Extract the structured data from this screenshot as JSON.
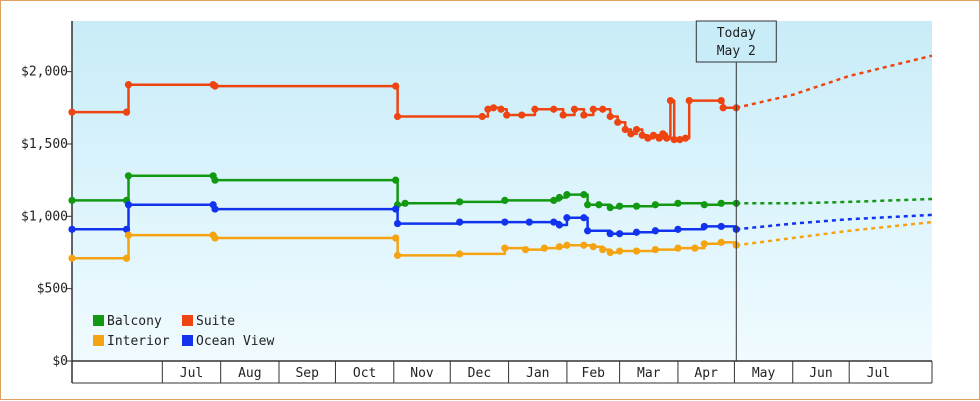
{
  "chart_data": {
    "type": "line",
    "y_axis": {
      "ticks": [
        "$0",
        "$500",
        "$1,000",
        "$1,500",
        "$2,000"
      ],
      "tick_values": [
        0,
        500,
        1000,
        1500,
        2000
      ],
      "ylim": [
        0,
        2350
      ]
    },
    "x_axis": {
      "month_labels": [
        "Jul",
        "Aug",
        "Sep",
        "Oct",
        "Nov",
        "Dec",
        "Jan",
        "Feb",
        "Mar",
        "Apr",
        "May",
        "Jun",
        "Jul"
      ],
      "month_starts": [
        "2024-06-01",
        "2024-07-01",
        "2024-08-01",
        "2024-09-01",
        "2024-10-01",
        "2024-11-01",
        "2024-12-01",
        "2025-01-01",
        "2025-02-01",
        "2025-03-01",
        "2025-04-01",
        "2025-05-01",
        "2025-06-01",
        "2025-07-01",
        "2025-08-01"
      ],
      "xlim": [
        "2024-05-14",
        "2025-08-14"
      ]
    },
    "today": {
      "date": "2025-05-02",
      "line1": "Today",
      "line2": "May 2"
    },
    "legend": {
      "placement": "bottom-left"
    },
    "series": [
      {
        "name": "Suite",
        "color": "#ee4411",
        "points": [
          [
            "2024-05-14",
            1720
          ],
          [
            "2024-06-12",
            1720
          ],
          [
            "2024-06-13",
            1910
          ],
          [
            "2024-07-28",
            1910
          ],
          [
            "2024-07-29",
            1900
          ],
          [
            "2024-11-02",
            1900
          ],
          [
            "2024-11-03",
            1690
          ],
          [
            "2024-12-18",
            1690
          ],
          [
            "2024-12-21",
            1740
          ],
          [
            "2024-12-24",
            1750
          ],
          [
            "2024-12-28",
            1740
          ],
          [
            "2024-12-31",
            1700
          ],
          [
            "2025-01-08",
            1700
          ],
          [
            "2025-01-15",
            1740
          ],
          [
            "2025-01-25",
            1740
          ],
          [
            "2025-01-30",
            1700
          ],
          [
            "2025-02-05",
            1740
          ],
          [
            "2025-02-10",
            1700
          ],
          [
            "2025-02-15",
            1740
          ],
          [
            "2025-02-20",
            1740
          ],
          [
            "2025-02-24",
            1690
          ],
          [
            "2025-02-28",
            1650
          ],
          [
            "2025-03-04",
            1600
          ],
          [
            "2025-03-07",
            1570
          ],
          [
            "2025-03-10",
            1600
          ],
          [
            "2025-03-13",
            1560
          ],
          [
            "2025-03-16",
            1540
          ],
          [
            "2025-03-19",
            1560
          ],
          [
            "2025-03-22",
            1540
          ],
          [
            "2025-03-24",
            1570
          ],
          [
            "2025-03-26",
            1540
          ],
          [
            "2025-03-28",
            1800
          ],
          [
            "2025-03-30",
            1530
          ],
          [
            "2025-04-02",
            1530
          ],
          [
            "2025-04-05",
            1540
          ],
          [
            "2025-04-07",
            1800
          ],
          [
            "2025-04-24",
            1800
          ],
          [
            "2025-04-25",
            1750
          ],
          [
            "2025-05-02",
            1750
          ]
        ],
        "forecast": [
          [
            "2025-05-02",
            1750
          ],
          [
            "2025-06-01",
            1840
          ],
          [
            "2025-07-01",
            1970
          ],
          [
            "2025-08-14",
            2110
          ]
        ]
      },
      {
        "name": "Balcony",
        "color": "#119911",
        "points": [
          [
            "2024-05-14",
            1110
          ],
          [
            "2024-06-12",
            1110
          ],
          [
            "2024-06-13",
            1280
          ],
          [
            "2024-07-28",
            1280
          ],
          [
            "2024-07-29",
            1250
          ],
          [
            "2024-11-02",
            1250
          ],
          [
            "2024-11-03",
            1080
          ],
          [
            "2024-11-07",
            1090
          ],
          [
            "2024-12-06",
            1100
          ],
          [
            "2024-12-30",
            1110
          ],
          [
            "2025-01-25",
            1110
          ],
          [
            "2025-01-28",
            1130
          ],
          [
            "2025-02-01",
            1150
          ],
          [
            "2025-02-10",
            1150
          ],
          [
            "2025-02-12",
            1080
          ],
          [
            "2025-02-18",
            1080
          ],
          [
            "2025-02-24",
            1060
          ],
          [
            "2025-03-01",
            1070
          ],
          [
            "2025-03-10",
            1070
          ],
          [
            "2025-03-20",
            1080
          ],
          [
            "2025-04-01",
            1090
          ],
          [
            "2025-04-15",
            1080
          ],
          [
            "2025-04-24",
            1090
          ],
          [
            "2025-05-02",
            1090
          ]
        ],
        "forecast": [
          [
            "2025-05-02",
            1090
          ],
          [
            "2025-06-01",
            1090
          ],
          [
            "2025-07-01",
            1100
          ],
          [
            "2025-08-14",
            1120
          ]
        ]
      },
      {
        "name": "Ocean View",
        "color": "#1133ee",
        "points": [
          [
            "2024-05-14",
            910
          ],
          [
            "2024-06-12",
            910
          ],
          [
            "2024-06-13",
            1080
          ],
          [
            "2024-07-28",
            1080
          ],
          [
            "2024-07-29",
            1050
          ],
          [
            "2024-11-02",
            1050
          ],
          [
            "2024-11-03",
            950
          ],
          [
            "2024-12-06",
            960
          ],
          [
            "2024-12-30",
            960
          ],
          [
            "2025-01-12",
            960
          ],
          [
            "2025-01-25",
            960
          ],
          [
            "2025-01-28",
            940
          ],
          [
            "2025-02-01",
            990
          ],
          [
            "2025-02-10",
            990
          ],
          [
            "2025-02-12",
            900
          ],
          [
            "2025-02-24",
            880
          ],
          [
            "2025-03-01",
            880
          ],
          [
            "2025-03-10",
            890
          ],
          [
            "2025-03-20",
            900
          ],
          [
            "2025-04-01",
            910
          ],
          [
            "2025-04-15",
            930
          ],
          [
            "2025-04-24",
            930
          ],
          [
            "2025-05-02",
            910
          ]
        ],
        "forecast": [
          [
            "2025-05-02",
            910
          ],
          [
            "2025-06-01",
            950
          ],
          [
            "2025-07-01",
            980
          ],
          [
            "2025-08-14",
            1010
          ]
        ]
      },
      {
        "name": "Interior",
        "color": "#f5a311",
        "points": [
          [
            "2024-05-14",
            710
          ],
          [
            "2024-06-12",
            710
          ],
          [
            "2024-06-13",
            870
          ],
          [
            "2024-07-28",
            870
          ],
          [
            "2024-07-29",
            850
          ],
          [
            "2024-11-02",
            850
          ],
          [
            "2024-11-03",
            730
          ],
          [
            "2024-12-06",
            740
          ],
          [
            "2024-12-30",
            780
          ],
          [
            "2025-01-10",
            770
          ],
          [
            "2025-01-20",
            780
          ],
          [
            "2025-01-28",
            790
          ],
          [
            "2025-02-01",
            800
          ],
          [
            "2025-02-10",
            800
          ],
          [
            "2025-02-15",
            790
          ],
          [
            "2025-02-20",
            770
          ],
          [
            "2025-02-24",
            750
          ],
          [
            "2025-03-01",
            760
          ],
          [
            "2025-03-10",
            760
          ],
          [
            "2025-03-20",
            770
          ],
          [
            "2025-04-01",
            780
          ],
          [
            "2025-04-10",
            780
          ],
          [
            "2025-04-15",
            810
          ],
          [
            "2025-04-24",
            820
          ],
          [
            "2025-05-02",
            800
          ]
        ],
        "forecast": [
          [
            "2025-05-02",
            800
          ],
          [
            "2025-06-01",
            850
          ],
          [
            "2025-07-01",
            900
          ],
          [
            "2025-08-14",
            960
          ]
        ]
      }
    ],
    "legend_entries": [
      {
        "label": "Balcony",
        "color": "#119911"
      },
      {
        "label": "Suite",
        "color": "#ee4411"
      },
      {
        "label": "Interior",
        "color": "#f5a311"
      },
      {
        "label": "Ocean View",
        "color": "#1133ee"
      }
    ]
  }
}
